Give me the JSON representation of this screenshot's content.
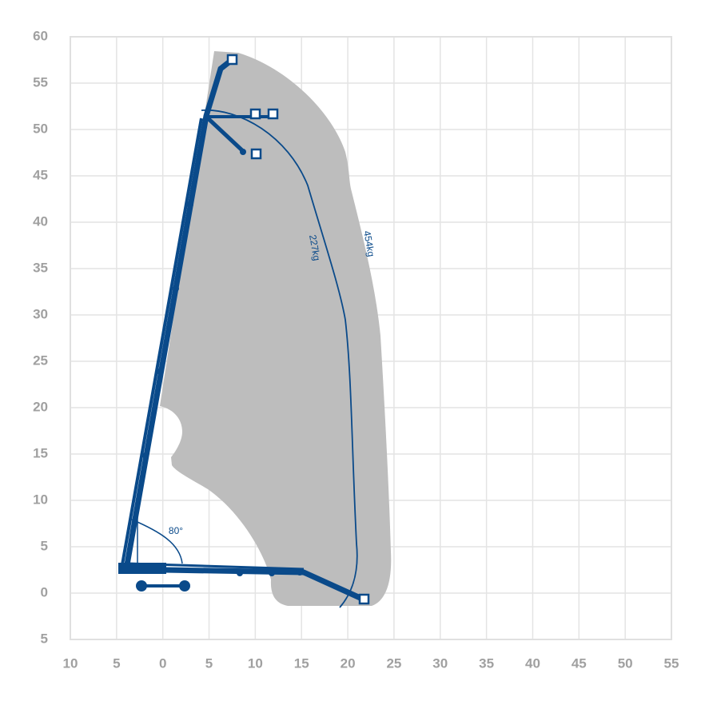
{
  "chart_data": {
    "type": "working-range",
    "xlim": [
      -10,
      55
    ],
    "ylim": [
      -5,
      60
    ],
    "xticks": [
      {
        "value": -10,
        "label": "10"
      },
      {
        "value": -5,
        "label": "5"
      },
      0,
      5,
      10,
      15,
      20,
      25,
      30,
      35,
      40,
      45,
      50,
      55
    ],
    "yticks": [
      60,
      55,
      50,
      45,
      40,
      35,
      30,
      25,
      20,
      15,
      10,
      5,
      0,
      {
        "value": -5,
        "label": "5"
      }
    ],
    "grid": true,
    "annotations": [
      "227kg",
      "454kg",
      "80°"
    ]
  }
}
